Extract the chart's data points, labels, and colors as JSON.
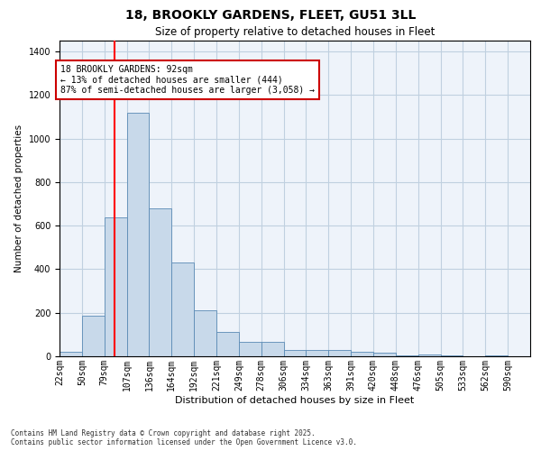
{
  "title1": "18, BROOKLY GARDENS, FLEET, GU51 3LL",
  "title2": "Size of property relative to detached houses in Fleet",
  "xlabel": "Distribution of detached houses by size in Fleet",
  "ylabel": "Number of detached properties",
  "bin_labels": [
    "22sqm",
    "50sqm",
    "79sqm",
    "107sqm",
    "136sqm",
    "164sqm",
    "192sqm",
    "221sqm",
    "249sqm",
    "278sqm",
    "306sqm",
    "334sqm",
    "363sqm",
    "391sqm",
    "420sqm",
    "448sqm",
    "476sqm",
    "505sqm",
    "533sqm",
    "562sqm",
    "590sqm"
  ],
  "bar_heights": [
    20,
    185,
    640,
    1120,
    680,
    430,
    210,
    110,
    65,
    65,
    30,
    30,
    30,
    20,
    15,
    5,
    10,
    5,
    0,
    5,
    0
  ],
  "bar_color": "#c8d9ea",
  "bar_edge_color": "#5a8ab5",
  "grid_color": "#c0d0e0",
  "bg_color": "#eef3fa",
  "red_line_after_bar": 2,
  "annotation_text": "18 BROOKLY GARDENS: 92sqm\n← 13% of detached houses are smaller (444)\n87% of semi-detached houses are larger (3,058) →",
  "annotation_box_color": "#ffffff",
  "annotation_box_edge": "#cc0000",
  "ylim": [
    0,
    1450
  ],
  "yticks": [
    0,
    200,
    400,
    600,
    800,
    1000,
    1200,
    1400
  ],
  "title1_fontsize": 10,
  "title2_fontsize": 8.5,
  "xlabel_fontsize": 8,
  "ylabel_fontsize": 7.5,
  "tick_fontsize": 7,
  "annot_fontsize": 7,
  "footer1": "Contains HM Land Registry data © Crown copyright and database right 2025.",
  "footer2": "Contains public sector information licensed under the Open Government Licence v3.0."
}
